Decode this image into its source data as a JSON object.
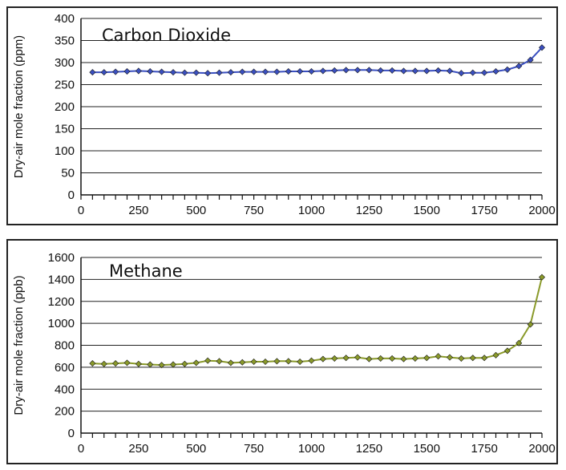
{
  "chart_data": [
    {
      "type": "line",
      "title": "Carbon Dioxide",
      "xlabel": "",
      "ylabel": "Dry-air mole fraction (ppm)",
      "xlim": [
        0,
        2000
      ],
      "ylim": [
        0,
        400
      ],
      "xticks": [
        0,
        250,
        500,
        750,
        1000,
        1250,
        1500,
        1750,
        2000
      ],
      "yticks": [
        0,
        50,
        100,
        150,
        200,
        250,
        300,
        350,
        400
      ],
      "grid": "horizontal",
      "legend": "none",
      "color": "#3a4fc0",
      "series": [
        {
          "x": [
            50,
            100,
            150,
            200,
            250,
            300,
            350,
            400,
            450,
            500,
            550,
            600,
            650,
            700,
            750,
            800,
            850,
            900,
            950,
            1000,
            1050,
            1100,
            1150,
            1200,
            1250,
            1300,
            1350,
            1400,
            1450,
            1500,
            1550,
            1600,
            1650,
            1700,
            1750,
            1800,
            1850,
            1900,
            1950,
            2000
          ],
          "y": [
            278,
            278,
            279,
            280,
            281,
            280,
            279,
            278,
            277,
            277,
            276,
            277,
            278,
            279,
            279,
            279,
            279,
            280,
            280,
            280,
            281,
            282,
            283,
            283,
            283,
            282,
            282,
            281,
            281,
            281,
            282,
            281,
            276,
            277,
            277,
            280,
            284,
            292,
            306,
            334
          ]
        }
      ]
    },
    {
      "type": "line",
      "title": "Methane",
      "xlabel": "",
      "ylabel": "Dry-air mole fraction (ppb)",
      "xlim": [
        0,
        2000
      ],
      "ylim": [
        0,
        1600
      ],
      "xticks": [
        0,
        250,
        500,
        750,
        1000,
        1250,
        1500,
        1750,
        2000
      ],
      "yticks": [
        0,
        200,
        400,
        600,
        800,
        1000,
        1200,
        1400,
        1600
      ],
      "grid": "horizontal",
      "legend": "none",
      "color": "#8a9a2a",
      "series": [
        {
          "x": [
            50,
            100,
            150,
            200,
            250,
            300,
            350,
            400,
            450,
            500,
            550,
            600,
            650,
            700,
            750,
            800,
            850,
            900,
            950,
            1000,
            1050,
            1100,
            1150,
            1200,
            1250,
            1300,
            1350,
            1400,
            1450,
            1500,
            1550,
            1600,
            1650,
            1700,
            1750,
            1800,
            1850,
            1900,
            1950,
            2000
          ],
          "y": [
            635,
            630,
            635,
            640,
            630,
            625,
            620,
            625,
            630,
            640,
            660,
            655,
            640,
            645,
            650,
            650,
            655,
            655,
            650,
            660,
            675,
            680,
            685,
            690,
            675,
            680,
            680,
            675,
            680,
            685,
            700,
            690,
            680,
            685,
            685,
            710,
            750,
            820,
            990,
            1420
          ]
        }
      ]
    }
  ]
}
